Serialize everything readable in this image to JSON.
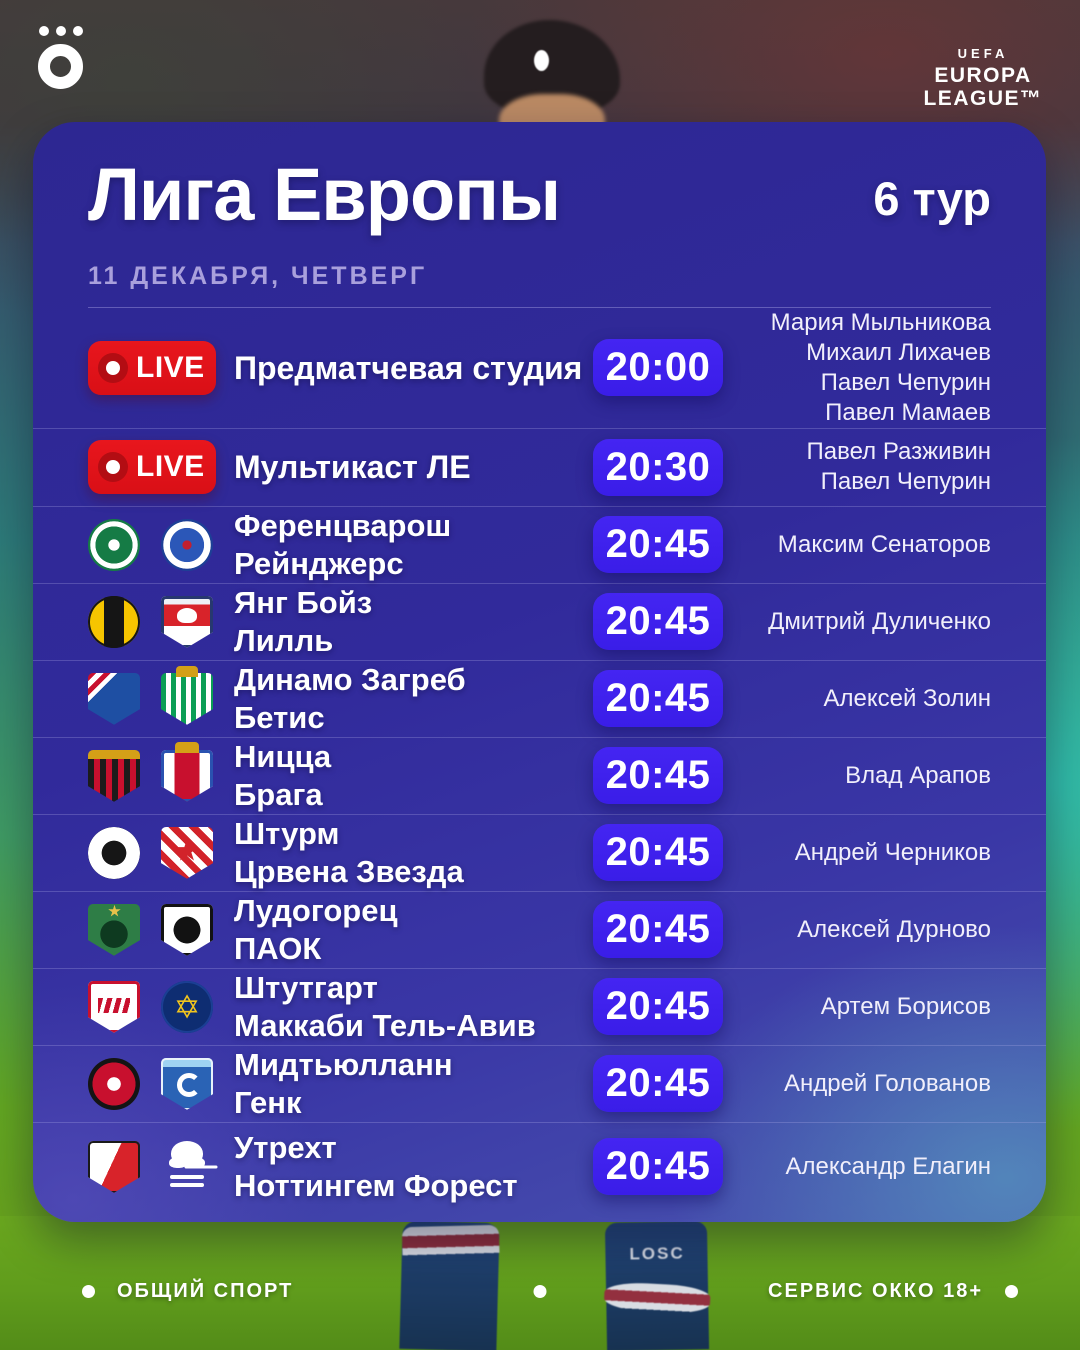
{
  "header": {
    "uefa_label": "UEFA",
    "competition_line1": "EUROPA",
    "competition_line2": "LEAGUE™"
  },
  "card": {
    "title": "Лига Европы",
    "round": "6 тур",
    "date": "11 ДЕКАБРЯ,  ЧЕТВЕРГ"
  },
  "schedule": {
    "live_badge_label": "LIVE",
    "rows": [
      {
        "type": "live",
        "title": "Предматчевая студия",
        "time": "20:00",
        "people": [
          "Мария Мыльникова",
          "Михаил Лихачев",
          "Павел Чепурин",
          "Павел Мамаев"
        ]
      },
      {
        "type": "live",
        "title": "Мультикаст ЛЕ",
        "time": "20:30",
        "people": [
          "Павел Разживин",
          "Павел Чепурин"
        ]
      },
      {
        "type": "match",
        "teams": [
          {
            "name": "Ференцварош",
            "logo": "ferencvaros"
          },
          {
            "name": "Рейнджерс",
            "logo": "rangers"
          }
        ],
        "time": "20:45",
        "people": [
          "Максим Сенаторов"
        ]
      },
      {
        "type": "match",
        "teams": [
          {
            "name": "Янг Бойз",
            "logo": "youngboys"
          },
          {
            "name": "Лилль",
            "logo": "lille"
          }
        ],
        "time": "20:45",
        "people": [
          "Дмитрий Дуличенко"
        ]
      },
      {
        "type": "match",
        "teams": [
          {
            "name": "Динамо Загреб",
            "logo": "dinamozagreb"
          },
          {
            "name": "Бетис",
            "logo": "betis"
          }
        ],
        "time": "20:45",
        "people": [
          "Алексей Золин"
        ]
      },
      {
        "type": "match",
        "teams": [
          {
            "name": "Ницца",
            "logo": "nice"
          },
          {
            "name": "Брага",
            "logo": "braga"
          }
        ],
        "time": "20:45",
        "people": [
          "Влад Арапов"
        ]
      },
      {
        "type": "match",
        "teams": [
          {
            "name": "Штурм",
            "logo": "sturm"
          },
          {
            "name": "Црвена Звезда",
            "logo": "crvenazvezda"
          }
        ],
        "time": "20:45",
        "people": [
          "Андрей Черников"
        ]
      },
      {
        "type": "match",
        "teams": [
          {
            "name": "Лудогорец",
            "logo": "ludogorets"
          },
          {
            "name": "ПАОК",
            "logo": "paok"
          }
        ],
        "time": "20:45",
        "people": [
          "Алексей Дурново"
        ]
      },
      {
        "type": "match",
        "teams": [
          {
            "name": "Штутгарт",
            "logo": "stuttgart"
          },
          {
            "name": "Маккаби Тель-Авив",
            "logo": "maccabi"
          }
        ],
        "time": "20:45",
        "people": [
          "Артем Борисов"
        ]
      },
      {
        "type": "match",
        "teams": [
          {
            "name": "Мидтьюлланн",
            "logo": "midtjylland"
          },
          {
            "name": "Генк",
            "logo": "genk"
          }
        ],
        "time": "20:45",
        "people": [
          "Андрей Голованов"
        ]
      },
      {
        "type": "match",
        "teams": [
          {
            "name": "Утрехт",
            "logo": "utrecht"
          },
          {
            "name": "Ноттингем Форест",
            "logo": "nottinghamforest"
          }
        ],
        "time": "20:45",
        "people": [
          "Александр Елагин"
        ]
      }
    ]
  },
  "background": {
    "sock_text": "LOSC"
  },
  "footer": {
    "left": "ОБЩИЙ СПОРТ",
    "right": "СЕРВИС ОККО 18+"
  },
  "colors": {
    "card_indigo": "#312a9b",
    "time_badge_blue": "#3e20ee",
    "live_red": "#e0141c",
    "muted_lavender": "#a9a0dc",
    "grass_green": "#63a41e"
  }
}
